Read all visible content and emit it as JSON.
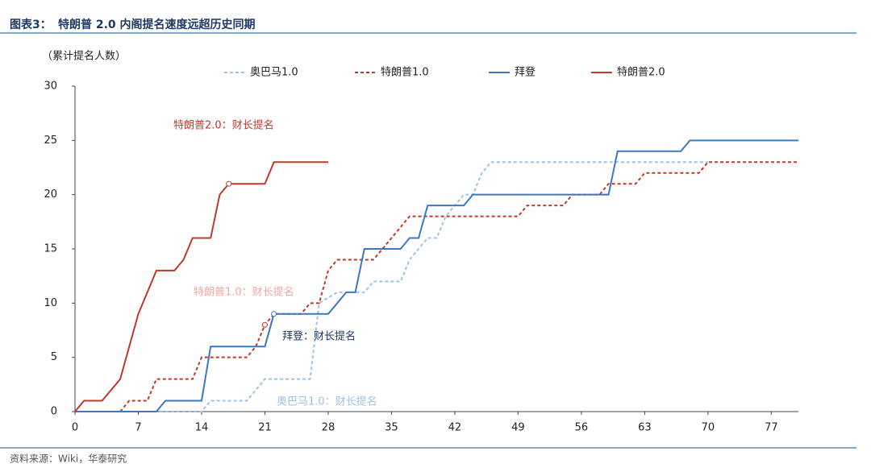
{
  "header": {
    "label": "图表3：",
    "title": "特朗普 2.0 内阁提名速度远超历史同期"
  },
  "footer": {
    "source": "资料来源：Wiki，华泰研究"
  },
  "chart_data": {
    "type": "line",
    "y_label": "（累计提名人数）",
    "xlim": [
      0,
      80
    ],
    "xticks": [
      0,
      7,
      14,
      21,
      28,
      35,
      42,
      49,
      56,
      63,
      70,
      77
    ],
    "ylim": [
      0,
      30
    ],
    "yticks": [
      0,
      5,
      10,
      15,
      20,
      25,
      30
    ],
    "grid": false,
    "legend": "top",
    "series": [
      {
        "name": "奥巴马1.0",
        "color": "#9dc3e6",
        "line_style": "dashed",
        "x": [
          0,
          14,
          15,
          19,
          20,
          21,
          26,
          27,
          29,
          32,
          33,
          36,
          37,
          38,
          39,
          40,
          41,
          43,
          44,
          45,
          46,
          70
        ],
        "values": [
          0,
          0,
          1,
          1,
          2,
          3,
          3,
          10,
          11,
          11,
          12,
          12,
          14,
          15,
          16,
          16,
          18,
          20,
          20,
          22,
          23,
          23
        ]
      },
      {
        "name": "特朗普1.0",
        "color": "#c0392b",
        "line_style": "dashed",
        "marked_point": 9,
        "x": [
          0,
          5,
          6,
          8,
          9,
          13,
          14,
          19,
          20,
          21,
          22,
          25,
          26,
          27,
          28,
          29,
          33,
          37,
          49,
          50,
          54,
          55,
          58,
          59,
          62,
          63,
          69,
          70,
          80
        ],
        "values": [
          0,
          0,
          1,
          1,
          3,
          3,
          5,
          5,
          6,
          8,
          9,
          9,
          10,
          10,
          13,
          14,
          14,
          18,
          18,
          19,
          19,
          20,
          20,
          21,
          21,
          22,
          22,
          23,
          23
        ]
      },
      {
        "name": "拜登",
        "color": "#3b78c1",
        "line_style": "solid",
        "marked_point": 6,
        "x": [
          0,
          9,
          10,
          14,
          15,
          21,
          22,
          28,
          30,
          31,
          32,
          36,
          37,
          38,
          39,
          43,
          44,
          59,
          60,
          67,
          68,
          80
        ],
        "values": [
          0,
          0,
          1,
          1,
          6,
          6,
          9,
          9,
          11,
          11,
          15,
          15,
          16,
          16,
          19,
          19,
          20,
          20,
          24,
          24,
          25,
          25
        ]
      },
      {
        "name": "特朗普2.0",
        "color": "#c0392b",
        "line_style": "solid",
        "marked_point": 11,
        "x": [
          0,
          1,
          3,
          5,
          7,
          9,
          11,
          12,
          13,
          15,
          16,
          17,
          21,
          22,
          28
        ],
        "values": [
          0,
          1,
          1,
          3,
          9,
          13,
          13,
          14,
          16,
          16,
          20,
          21,
          21,
          23,
          23
        ]
      }
    ],
    "annotations": [
      {
        "text": "特朗普2.0：财长提名",
        "color": "#c0392b"
      },
      {
        "text": "特朗普1.0：财长提名",
        "color": "#f4a6a6"
      },
      {
        "text": "拜登：财长提名",
        "color": "#1f3864"
      },
      {
        "text": "奥巴马1.0：财长提名",
        "color": "#9dc3e6"
      }
    ]
  }
}
